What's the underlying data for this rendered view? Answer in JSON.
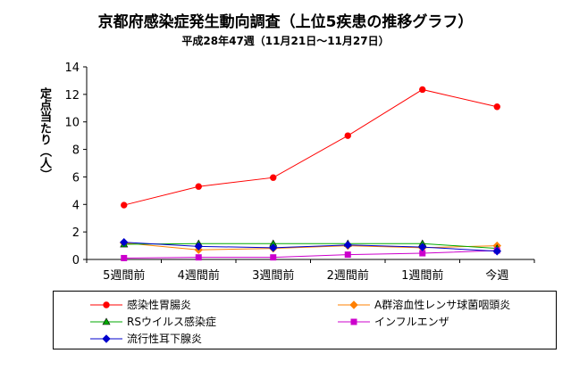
{
  "chart_data": {
    "type": "line",
    "title": "京都府感染症発生動向調査（上位5疾患の推移グラフ）",
    "subtitle": "平成28年47週（11月21日～11月27日）",
    "ylabel": "定点当たり（人）",
    "xlabel": "",
    "categories": [
      "5週間前",
      "4週間前",
      "3週間前",
      "2週間前",
      "1週間前",
      "今週"
    ],
    "ylim": [
      0,
      14
    ],
    "yticks": [
      "0",
      "2",
      "4",
      "6",
      "8",
      "10",
      "12",
      "14"
    ],
    "grid": false,
    "legend_position": "bottom",
    "series": [
      {
        "name": "感染性胃腸炎",
        "color": "#ff0000",
        "marker": "circle",
        "values": [
          3.95,
          5.3,
          5.95,
          9.0,
          12.35,
          11.1
        ]
      },
      {
        "name": "A群溶血性レンサ球菌咽頭炎",
        "color": "#ff8000",
        "marker": "diamond",
        "values": [
          1.2,
          0.7,
          0.8,
          1.0,
          0.85,
          1.0
        ]
      },
      {
        "name": "RSウイルス感染症",
        "color": "#00aa00",
        "marker": "triangle",
        "values": [
          1.1,
          1.15,
          1.15,
          1.15,
          1.15,
          0.8
        ]
      },
      {
        "name": "インフルエンザ",
        "color": "#cc00cc",
        "marker": "square",
        "values": [
          0.1,
          0.15,
          0.15,
          0.35,
          0.45,
          0.65
        ]
      },
      {
        "name": "流行性耳下腺炎",
        "color": "#0000cc",
        "marker": "diamond",
        "values": [
          1.25,
          0.95,
          0.85,
          1.05,
          0.9,
          0.6
        ]
      }
    ]
  }
}
